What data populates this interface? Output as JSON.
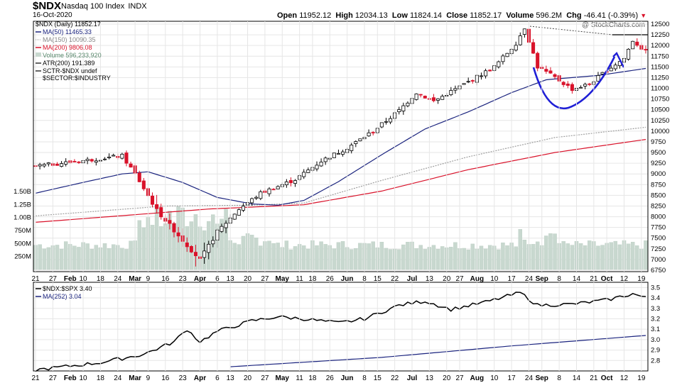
{
  "header": {
    "symbol": "$NDX",
    "name": "Nasdaq 100 Index",
    "exchange": "INDX",
    "date": "16-Oct-2020",
    "open_label": "Open",
    "open": "11952.12",
    "high_label": "High",
    "high": "12034.13",
    "low_label": "Low",
    "low": "11824.14",
    "close_label": "Close",
    "close": "11852.17",
    "volume_label": "Volume",
    "volume": "596.2M",
    "chg_label": "Chg",
    "chg": "-46.41 (-0.39%)",
    "watermark": "@ StockCharts.com"
  },
  "legend": {
    "price": "$NDX (Daily) 11852.17",
    "ma50": "MA(50) 11465.33",
    "ma150": "MA(150) 10090.35",
    "ma200": "MA(200) 9806.08",
    "volume": "Volume 596,233,920",
    "atr": "ATR(200) 191.389",
    "sctr": "SCTR-$NDX undef",
    "sector": "$SECTOR:$INDUSTRY"
  },
  "ratio_legend": {
    "ratio": "$NDX:$SPX 3.40",
    "ma": "MA(252) 3.04"
  },
  "colors": {
    "up": "#000000",
    "down": "#d9122a",
    "ma50": "#1a237e",
    "ma150": "#9e9e9e",
    "ma200": "#d9122a",
    "volume": "#c8d8cf",
    "annotation": "#1f1fd6",
    "grid": "#e6e6e6"
  },
  "chart_data": [
    {
      "type": "candlestick",
      "title": "$NDX (Daily) 11852.17",
      "ylim": [
        6750,
        12500
      ],
      "y_ticks": [
        "12500",
        "12250",
        "12000",
        "11750",
        "11500",
        "11250",
        "11000",
        "10750",
        "10500",
        "10250",
        "10000",
        "9750",
        "9500",
        "9250",
        "9000",
        "8750",
        "8500",
        "8250",
        "8000",
        "7750",
        "7500",
        "7250",
        "7000",
        "6750"
      ],
      "volume_ticks": [
        "1.50B",
        "1.25B",
        "1.00B",
        "750M",
        "500M",
        "250M"
      ],
      "x_labels": [
        "21",
        "27",
        "Feb",
        "10",
        "18",
        "24",
        "Mar",
        "9",
        "16",
        "23",
        "Apr",
        "6",
        "13",
        "20",
        "27",
        "May",
        "11",
        "18",
        "26",
        "Jun",
        "8",
        "15",
        "22",
        "Jul",
        "13",
        "20",
        "27",
        "Aug",
        "10",
        "17",
        "24",
        "Sep",
        "8",
        "14",
        "21",
        "Oct",
        "12",
        "19"
      ],
      "close_keypoints": [
        {
          "x": 0,
          "close": 9180
        },
        {
          "x": 10,
          "close": 9300
        },
        {
          "x": 20,
          "close": 9420
        },
        {
          "x": 23,
          "close": 9000
        },
        {
          "x": 28,
          "close": 8150
        },
        {
          "x": 34,
          "close": 7450
        },
        {
          "x": 38,
          "close": 6990
        },
        {
          "x": 42,
          "close": 7650
        },
        {
          "x": 47,
          "close": 8180
        },
        {
          "x": 52,
          "close": 8550
        },
        {
          "x": 60,
          "close": 8870
        },
        {
          "x": 66,
          "close": 9300
        },
        {
          "x": 72,
          "close": 9610
        },
        {
          "x": 78,
          "close": 10000
        },
        {
          "x": 84,
          "close": 10480
        },
        {
          "x": 88,
          "close": 10900
        },
        {
          "x": 92,
          "close": 10700
        },
        {
          "x": 100,
          "close": 11150
        },
        {
          "x": 106,
          "close": 11500
        },
        {
          "x": 111,
          "close": 12050
        },
        {
          "x": 113,
          "close": 12420
        },
        {
          "x": 116,
          "close": 11500
        },
        {
          "x": 120,
          "close": 11250
        },
        {
          "x": 124,
          "close": 10980
        },
        {
          "x": 128,
          "close": 11100
        },
        {
          "x": 132,
          "close": 11420
        },
        {
          "x": 136,
          "close": 11700
        },
        {
          "x": 138,
          "close": 12120
        },
        {
          "x": 141,
          "close": 11852
        }
      ],
      "ma50_keypoints": [
        {
          "x": 0,
          "value": 8550
        },
        {
          "x": 10,
          "value": 8780
        },
        {
          "x": 20,
          "value": 9000
        },
        {
          "x": 26,
          "value": 9050
        },
        {
          "x": 34,
          "value": 8800
        },
        {
          "x": 42,
          "value": 8450
        },
        {
          "x": 50,
          "value": 8300
        },
        {
          "x": 56,
          "value": 8270
        },
        {
          "x": 62,
          "value": 8380
        },
        {
          "x": 70,
          "value": 8820
        },
        {
          "x": 80,
          "value": 9450
        },
        {
          "x": 90,
          "value": 10050
        },
        {
          "x": 100,
          "value": 10450
        },
        {
          "x": 110,
          "value": 10900
        },
        {
          "x": 118,
          "value": 11200
        },
        {
          "x": 130,
          "value": 11300
        },
        {
          "x": 141,
          "value": 11465
        }
      ],
      "ma150_keypoints": [
        {
          "x": 0,
          "value": 8020
        },
        {
          "x": 30,
          "value": 8250
        },
        {
          "x": 50,
          "value": 8270
        },
        {
          "x": 62,
          "value": 8320
        },
        {
          "x": 80,
          "value": 8850
        },
        {
          "x": 100,
          "value": 9400
        },
        {
          "x": 120,
          "value": 9850
        },
        {
          "x": 141,
          "value": 10090
        }
      ],
      "ma200_keypoints": [
        {
          "x": 0,
          "value": 7870
        },
        {
          "x": 40,
          "value": 8180
        },
        {
          "x": 62,
          "value": 8280
        },
        {
          "x": 80,
          "value": 8600
        },
        {
          "x": 100,
          "value": 9100
        },
        {
          "x": 120,
          "value": 9500
        },
        {
          "x": 141,
          "value": 9806
        }
      ]
    },
    {
      "type": "line",
      "title": "$NDX:$SPX 3.40",
      "ylim": [
        2.7,
        3.55
      ],
      "y_ticks": [
        "3.5",
        "3.4",
        "3.3",
        "3.2",
        "3.1",
        "3.0",
        "2.9",
        "2.8"
      ],
      "series": [
        {
          "name": "$NDX:$SPX",
          "keypoints": [
            {
              "x": 0,
              "value": 2.71
            },
            {
              "x": 15,
              "value": 2.78
            },
            {
              "x": 25,
              "value": 2.86
            },
            {
              "x": 32,
              "value": 2.98
            },
            {
              "x": 35,
              "value": 3.1
            },
            {
              "x": 38,
              "value": 2.98
            },
            {
              "x": 42,
              "value": 3.08
            },
            {
              "x": 50,
              "value": 3.18
            },
            {
              "x": 56,
              "value": 3.22
            },
            {
              "x": 62,
              "value": 3.2
            },
            {
              "x": 70,
              "value": 3.16
            },
            {
              "x": 76,
              "value": 3.2
            },
            {
              "x": 84,
              "value": 3.33
            },
            {
              "x": 90,
              "value": 3.37
            },
            {
              "x": 96,
              "value": 3.29
            },
            {
              "x": 104,
              "value": 3.36
            },
            {
              "x": 112,
              "value": 3.45
            },
            {
              "x": 116,
              "value": 3.33
            },
            {
              "x": 124,
              "value": 3.34
            },
            {
              "x": 132,
              "value": 3.38
            },
            {
              "x": 138,
              "value": 3.44
            },
            {
              "x": 141,
              "value": 3.4
            }
          ]
        },
        {
          "name": "MA(252)",
          "keypoints": [
            {
              "x": 45,
              "value": 2.74
            },
            {
              "x": 80,
              "value": 2.83
            },
            {
              "x": 110,
              "value": 2.94
            },
            {
              "x": 141,
              "value": 3.04
            }
          ]
        }
      ]
    }
  ]
}
